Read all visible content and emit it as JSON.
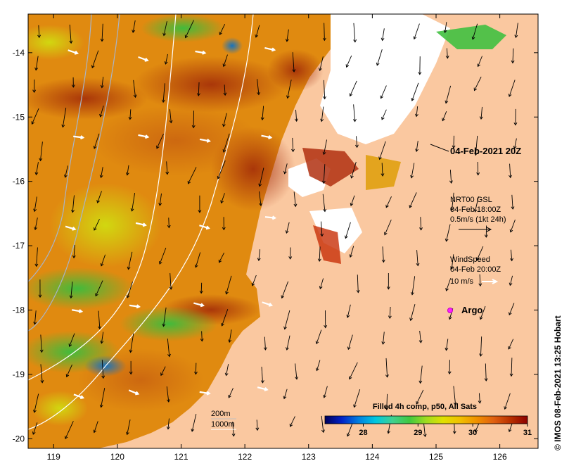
{
  "map": {
    "x_ticks": [
      "119",
      "120",
      "121",
      "122",
      "123",
      "124",
      "125",
      "126"
    ],
    "y_ticks": [
      "-14",
      "-15",
      "-16",
      "-17",
      "-18",
      "-19",
      "-20"
    ],
    "x_range": [
      118.6,
      126.6
    ],
    "y_range": [
      -20.15,
      -13.4
    ],
    "timestamp_label": "04-Feb-2021 20Z",
    "argo_label": "Argo",
    "current_legend": {
      "line1": "NRT00 GSL",
      "line2": "04-Feb 18:00Z",
      "line3": "0.5m/s (1kt 24h)"
    },
    "wind_legend": {
      "line1": "WindSpeed",
      "line2": "04-Feb 20:00Z",
      "line3": "10 m/s"
    },
    "isobath_legend": {
      "label_200": "200m",
      "label_1000": "1000m"
    },
    "colorbar": {
      "title": "Filled 4h comp, p50, All Sats",
      "ticks": [
        "28",
        "29",
        "30",
        "31"
      ],
      "range": [
        27.3,
        31
      ],
      "colors": [
        "#00005a",
        "#0022c8",
        "#0080e0",
        "#00c8e0",
        "#40d090",
        "#40c840",
        "#a0dc20",
        "#e0e000",
        "#f0c000",
        "#f09000",
        "#e06010",
        "#b83000",
        "#8c0000"
      ]
    },
    "credit": "IMOS 08-Feb-2021 13:25 Hobart",
    "colors": {
      "land": "#fac8a0",
      "cloud": "#ffffff",
      "warm": "#e08a10",
      "hot": "#a02808"
    }
  }
}
